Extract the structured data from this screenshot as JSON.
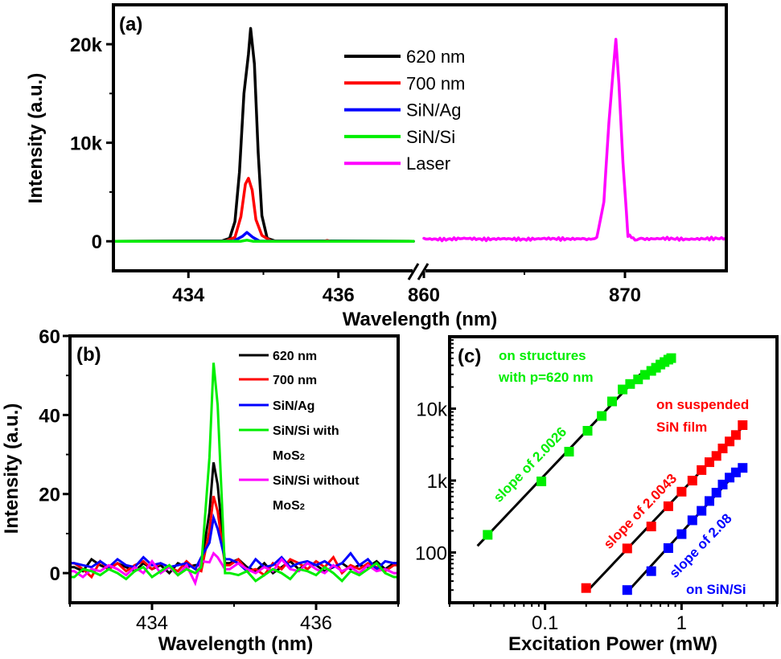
{
  "chart_data": [
    {
      "panel": "a",
      "type": "line",
      "panel_label": "(a)",
      "xlabel": "Wavelength (nm)",
      "ylabel": "Intensity (a.u.)",
      "x_axis_break": true,
      "x_segments": [
        {
          "range": [
            433,
            437
          ],
          "ticks": [
            434,
            436
          ],
          "tick_labels": [
            "434",
            "436"
          ],
          "minor_ticks": [
            433,
            435,
            437
          ]
        },
        {
          "range": [
            860,
            875
          ],
          "ticks": [
            860,
            870
          ],
          "tick_labels": [
            "860",
            "870"
          ],
          "minor_ticks": [
            865,
            875
          ]
        }
      ],
      "ylim": [
        -3000,
        24000
      ],
      "yticks": [
        0,
        10000,
        20000
      ],
      "ytick_labels": [
        "0",
        "10k",
        "20k"
      ],
      "minor_yticks": [
        5000,
        15000
      ],
      "legend": {
        "placement": "top-center",
        "entries": [
          "620 nm",
          "700 nm",
          "SiN/Ag",
          "SiN/Si",
          "Laser"
        ]
      },
      "series": [
        {
          "name": "620 nm",
          "color": "#000000",
          "segment": 0,
          "x": [
            433.0,
            434.45,
            434.55,
            434.62,
            434.68,
            434.74,
            434.8,
            434.83,
            434.88,
            434.93,
            434.98,
            435.05,
            435.15,
            437.0
          ],
          "y": [
            0,
            50,
            300,
            2000,
            7000,
            15000,
            19000,
            21600,
            18000,
            9000,
            2600,
            300,
            50,
            0
          ]
        },
        {
          "name": "700 nm",
          "color": "#ff0000",
          "segment": 0,
          "x": [
            433.0,
            434.5,
            434.62,
            434.7,
            434.76,
            434.8,
            434.85,
            434.9,
            434.98,
            435.1,
            435.8,
            435.85,
            435.9,
            437.0
          ],
          "y": [
            0,
            30,
            400,
            2500,
            5800,
            6400,
            5200,
            2200,
            600,
            40,
            0,
            80,
            0,
            0
          ]
        },
        {
          "name": "SiN/Ag",
          "color": "#0000ff",
          "segment": 0,
          "x": [
            433.0,
            434.6,
            434.72,
            434.78,
            434.86,
            434.95,
            437.0
          ],
          "y": [
            0,
            20,
            500,
            900,
            400,
            20,
            0
          ]
        },
        {
          "name": "SiN/Si",
          "color": "#00ee00",
          "segment": 0,
          "x": [
            433.0,
            434.7,
            434.78,
            434.86,
            437.0
          ],
          "y": [
            0,
            0,
            120,
            0,
            0
          ]
        },
        {
          "name": "Laser",
          "color": "#ff00ff",
          "segment": 1,
          "x": [
            860.0,
            861.0,
            862.0,
            863.0,
            864.0,
            865.0,
            866.0,
            867.0,
            868.0,
            868.6,
            868.95,
            869.2,
            869.4,
            869.55,
            869.7,
            869.9,
            870.15,
            870.5,
            871.0,
            872.0,
            873.0,
            874.0,
            875.0
          ],
          "y": [
            250,
            180,
            300,
            200,
            260,
            190,
            280,
            230,
            260,
            350,
            4000,
            12000,
            17000,
            20500,
            16000,
            8000,
            600,
            260,
            220,
            290,
            200,
            260,
            300
          ]
        }
      ]
    },
    {
      "panel": "b",
      "type": "line",
      "panel_label": "(b)",
      "xlabel": "Wavelength (nm)",
      "ylabel": "Intensity (a.u.)",
      "xlim": [
        433,
        437
      ],
      "xticks": [
        434,
        436
      ],
      "xtick_labels": [
        "434",
        "436"
      ],
      "minor_xticks": [
        433,
        435,
        437
      ],
      "ylim": [
        -7.5,
        60
      ],
      "yticks": [
        0,
        20,
        40,
        60
      ],
      "ytick_labels": [
        "0",
        "20",
        "40",
        "60"
      ],
      "minor_yticks": [
        10,
        30,
        50
      ],
      "legend": {
        "placement": "top-right",
        "entries": [
          "620 nm",
          "700 nm",
          "SiN/Ag",
          "SiN/Si with MoS2",
          "SiN/Si without MoS2"
        ]
      },
      "peak_wavelength": 434.75,
      "series": [
        {
          "name": "620 nm",
          "color": "#000000",
          "peak": 28,
          "baseline": [
            1.5,
            0.5,
            3.5,
            2.0,
            1.0,
            2.5,
            1.5,
            0.5,
            2.5,
            1.0,
            2.0,
            0.0,
            2.5,
            1.5,
            2.0,
            3.0,
            2.0,
            1.0,
            2.5,
            3.5,
            1.5,
            0.5,
            2.5,
            0.0,
            1.5,
            3.0,
            1.0,
            2.5,
            2.0,
            0.5,
            1.5,
            2.5,
            1.0,
            2.0,
            1.5,
            3.0,
            1.0,
            2.5
          ]
        },
        {
          "name": "700 nm",
          "color": "#ff0000",
          "peak": 19.5,
          "baseline": [
            2.5,
            1.0,
            -1.0,
            3.0,
            1.0,
            2.5,
            0.5,
            2.0,
            3.0,
            1.0,
            2.5,
            1.5,
            0.5,
            3.0,
            1.0,
            2.0,
            4.0,
            -0.5,
            2.0,
            3.5,
            0.5,
            1.0,
            -0.5,
            2.5,
            1.0,
            3.5,
            2.5,
            1.0,
            3.0,
            1.5,
            4.0,
            0.0,
            2.0,
            1.0,
            2.5,
            1.5,
            0.5,
            2.0
          ]
        },
        {
          "name": "SiN/Ag",
          "color": "#0000ff",
          "peak": 14,
          "baseline": [
            2.5,
            2.0,
            1.5,
            3.0,
            1.5,
            3.5,
            2.0,
            1.5,
            4.0,
            2.0,
            2.5,
            1.5,
            2.0,
            2.5,
            1.0,
            2.0,
            2.5,
            3.0,
            3.5,
            2.5,
            0.5,
            3.5,
            1.5,
            2.0,
            4.0,
            1.5,
            2.5,
            3.0,
            2.0,
            3.0,
            1.5,
            2.5,
            5.0,
            2.0,
            3.5,
            1.0,
            3.0,
            2.5
          ]
        },
        {
          "name": "SiN/Si with MoS2",
          "color": "#00ee00",
          "peak": 53.2,
          "baseline": [
            -1.0,
            1.0,
            0.5,
            -0.5,
            1.0,
            0.0,
            -1.5,
            0.5,
            1.5,
            -1.0,
            0.5,
            2.0,
            -0.5,
            1.0,
            0.0,
            1.5,
            -1.0,
            0.5,
            0.0,
            -0.5,
            0.5,
            -2.0,
            -0.5,
            1.0,
            0.0,
            -1.5,
            1.0,
            0.5,
            -0.5,
            1.5,
            0.0,
            -2.0,
            0.5,
            -0.5,
            1.0,
            2.5,
            0.0,
            -1.0
          ]
        },
        {
          "name": "SiN/Si without MoS2",
          "color": "#ff00ff",
          "peak": 5,
          "baseline": [
            0.5,
            -1.0,
            1.0,
            0.5,
            2.0,
            1.0,
            -0.5,
            1.5,
            0.0,
            3.0,
            0.0,
            1.5,
            -0.5,
            2.0,
            -2.5,
            1.5,
            0.5,
            2.0,
            1.0,
            2.5,
            1.0,
            0.0,
            1.5,
            0.5,
            3.5,
            1.0,
            0.5,
            2.5,
            1.0,
            0.0,
            2.0,
            0.5,
            1.5,
            0.0,
            2.0,
            0.5,
            1.0,
            0.0
          ]
        }
      ]
    },
    {
      "panel": "c",
      "type": "scatter",
      "panel_label": "(c)",
      "xlabel": "Excitation Power (mW)",
      "ylabel": "",
      "xscale": "log",
      "yscale": "log",
      "xlim": [
        0.02,
        5
      ],
      "ylim": [
        20,
        100000
      ],
      "xticks": [
        0.1,
        1
      ],
      "xtick_labels": [
        "0.1",
        "1"
      ],
      "yticks": [
        100,
        1000,
        10000
      ],
      "ytick_labels": [
        "100",
        "1k",
        "10k"
      ],
      "series": [
        {
          "name": "on structures with p=620 nm",
          "color": "#00ee00",
          "x": [
            0.038,
            0.094,
            0.15,
            0.205,
            0.26,
            0.31,
            0.37,
            0.42,
            0.48,
            0.54,
            0.6,
            0.65,
            0.7,
            0.75,
            0.8,
            0.84
          ],
          "y": [
            176,
            975,
            2520,
            4930,
            7900,
            12600,
            18500,
            22000,
            25500,
            29500,
            33500,
            37000,
            41000,
            44500,
            48000,
            50500
          ],
          "fit": {
            "slope": 2.0026,
            "x_range": [
              0.032,
              0.5
            ]
          }
        },
        {
          "name": "on suspended SiN film",
          "color": "#ff0000",
          "x": [
            0.2,
            0.4,
            0.6,
            0.8,
            1.0,
            1.2,
            1.4,
            1.6,
            1.8,
            2.0,
            2.25,
            2.5,
            2.8
          ],
          "y": [
            32,
            114,
            230,
            440,
            700,
            1000,
            1400,
            1800,
            2200,
            2800,
            3500,
            4300,
            5900
          ],
          "fit": {
            "slope": 2.0043,
            "x_range": [
              0.21,
              2.75
            ]
          }
        },
        {
          "name": "on SiN/Si",
          "color": "#0000ff",
          "x": [
            0.4,
            0.6,
            0.8,
            1.0,
            1.2,
            1.4,
            1.6,
            1.8,
            2.0,
            2.25,
            2.5,
            2.8
          ],
          "y": [
            30,
            55,
            115,
            180,
            280,
            380,
            520,
            680,
            880,
            1100,
            1300,
            1500
          ],
          "fit": {
            "slope": 2.08,
            "x_range": [
              0.42,
              2.75
            ]
          }
        }
      ],
      "annotations": [
        {
          "text_lines": [
            "on structures",
            "with p=620 nm"
          ],
          "color": "#00ee00"
        },
        {
          "text_lines": [
            "slope of 2.0026"
          ],
          "color": "#00ee00"
        },
        {
          "text_lines": [
            "on suspended",
            "SiN film"
          ],
          "color": "#ff0000"
        },
        {
          "text_lines": [
            "slope of 2.0043"
          ],
          "color": "#ff0000"
        },
        {
          "text_lines": [
            "slope of 2.08"
          ],
          "color": "#0000ff"
        },
        {
          "text_lines": [
            "on SiN/Si"
          ],
          "color": "#0000ff"
        }
      ]
    }
  ]
}
